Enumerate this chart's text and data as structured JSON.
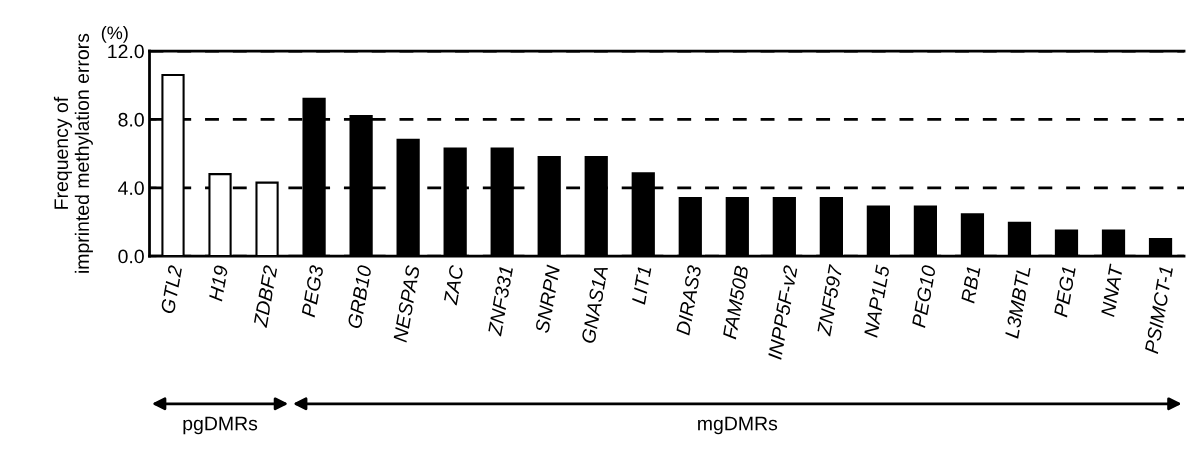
{
  "chart_data": {
    "type": "bar",
    "ylabel": "Frequency of\nimprinted methylation errors",
    "categories": [
      "GTL2",
      "H19",
      "ZDBF2",
      "PEG3",
      "GRB10",
      "NESPAS",
      "ZAC",
      "ZNF331",
      "SNRPN",
      "GNAS1A",
      "LIT1",
      "DIRAS3",
      "FAM50B",
      "INPP5F-v2",
      "ZNF597",
      "NAP1L5",
      "PEG10",
      "RB1",
      "L3MBTL",
      "PEG1",
      "NNAT",
      "PSIMCT-1"
    ],
    "values": [
      10.6,
      4.8,
      4.3,
      9.2,
      8.2,
      6.8,
      6.3,
      6.3,
      5.8,
      5.8,
      4.85,
      3.4,
      3.4,
      3.4,
      3.4,
      2.9,
      2.9,
      2.45,
      1.95,
      1.5,
      1.5,
      1.0
    ],
    "colors": [
      "#ffffff",
      "#ffffff",
      "#ffffff",
      "#000000",
      "#000000",
      "#000000",
      "#000000",
      "#000000",
      "#000000",
      "#000000",
      "#000000",
      "#000000",
      "#000000",
      "#000000",
      "#000000",
      "#000000",
      "#000000",
      "#000000",
      "#000000",
      "#000000",
      "#000000",
      "#000000"
    ],
    "ylim": [
      0,
      12
    ],
    "yticks": [
      {
        "value": 0,
        "label": "0.0"
      },
      {
        "value": 4,
        "label": "4.0"
      },
      {
        "value": 8,
        "label": "8.0"
      },
      {
        "value": 12,
        "label": "12.0"
      }
    ],
    "grid": "y",
    "line_style": "dashed",
    "annotations": [
      "(%)",
      "pgDMRs",
      "mgDMRs"
    ]
  }
}
